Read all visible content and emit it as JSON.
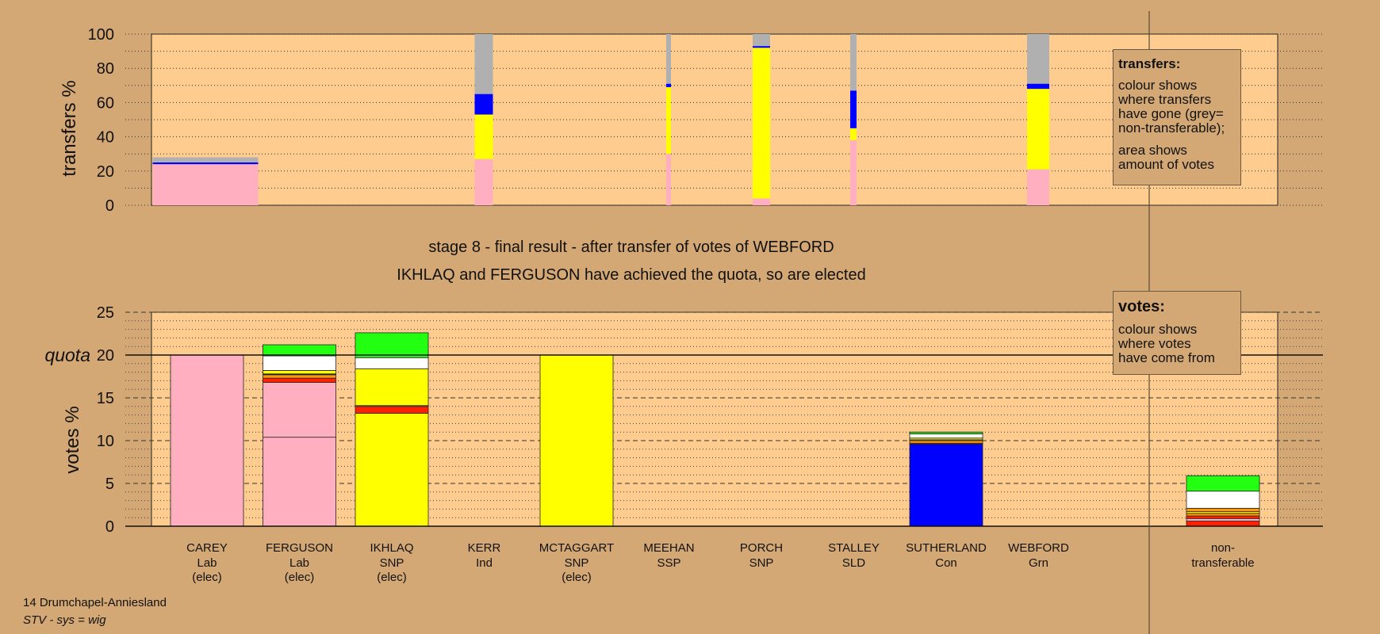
{
  "stage_line": "stage 8 - final result - after transfer of votes of WEBFORD",
  "result_line": "IKHLAQ and FERGUSON have achieved the quota, so are elected",
  "transfers_legend": {
    "title": "transfers:",
    "line1": "colour shows",
    "line2": "where transfers",
    "line3": "have gone (grey=",
    "line4": "non-transferable);",
    "line5": "area shows",
    "line6": "amount of votes"
  },
  "votes_legend": {
    "title": "votes:",
    "line1": "colour shows",
    "line2": "where votes",
    "line3": "have come from"
  },
  "footer": {
    "ward": "14 Drumchapel-Anniesland",
    "system": "STV - sys = wig"
  },
  "colors": {
    "background": "#d4a874",
    "plot_bg": "#ffcc8f",
    "Lab": "#ffafc0",
    "SNP": "#ffff00",
    "Con": "#0000ff",
    "Grn": "#22ff11",
    "Ind": "#ffffff",
    "SSP": "#ff2200",
    "SLD": "#ff9900",
    "nontransferable": "#b0b0b0"
  },
  "chart_data": [
    {
      "type": "bar",
      "stacked": true,
      "ylabel": "transfers %",
      "ylim": [
        0,
        100
      ],
      "yticks": [
        0,
        20,
        40,
        60,
        80,
        100
      ],
      "grid": true,
      "legend": "top-right",
      "columns": [
        {
          "name": "CAREY",
          "width_share": 25.0,
          "segments": [
            {
              "party": "Lab",
              "value": 24.0
            },
            {
              "party": "Con",
              "value": 1.0
            },
            {
              "party": "nontransferable",
              "value": 3.0
            }
          ]
        },
        {
          "name": "KERR",
          "width_share": 4.0,
          "segments": [
            {
              "party": "Lab",
              "value": 27.0
            },
            {
              "party": "SNP",
              "value": 26.0
            },
            {
              "party": "Con",
              "value": 12.0
            },
            {
              "party": "nontransferable",
              "value": 35.0
            }
          ]
        },
        {
          "name": "MEEHAN",
          "width_share": 1.0,
          "segments": [
            {
              "party": "Lab",
              "value": 30.0
            },
            {
              "party": "SNP",
              "value": 39.0
            },
            {
              "party": "Con",
              "value": 2.0
            },
            {
              "party": "nontransferable",
              "value": 29.0
            }
          ]
        },
        {
          "name": "PORCH",
          "width_share": 4.0,
          "segments": [
            {
              "party": "Lab",
              "value": 4.0
            },
            {
              "party": "SNP",
              "value": 88.0
            },
            {
              "party": "Con",
              "value": 1.0
            },
            {
              "party": "nontransferable",
              "value": 7.0
            }
          ]
        },
        {
          "name": "STALLEY",
          "width_share": 1.0,
          "segments": [
            {
              "party": "Lab",
              "value": 38.0
            },
            {
              "party": "SNP",
              "value": 7.0
            },
            {
              "party": "Con",
              "value": 22.0
            },
            {
              "party": "nontransferable",
              "value": 33.0
            }
          ]
        },
        {
          "name": "WEBFORD",
          "width_share": 5.0,
          "segments": [
            {
              "party": "Lab",
              "value": 21.0
            },
            {
              "party": "SNP",
              "value": 47.0
            },
            {
              "party": "Con",
              "value": 3.0
            },
            {
              "party": "nontransferable",
              "value": 29.0
            }
          ]
        }
      ]
    },
    {
      "type": "bar",
      "stacked": true,
      "ylabel": "votes %",
      "ylim": [
        0,
        25
      ],
      "yticks": [
        0,
        5,
        10,
        15,
        20,
        25
      ],
      "quota": 20,
      "quota_label": "quota",
      "grid": true,
      "legend": "top-right",
      "candidates": [
        {
          "name": "CAREY",
          "party": "Lab",
          "status": "(elec)",
          "segments": [
            {
              "party": "Lab",
              "value": 20.0
            }
          ]
        },
        {
          "name": "FERGUSON",
          "party": "Lab",
          "status": "(elec)",
          "segments": [
            {
              "party": "Lab",
              "value": 10.4
            },
            {
              "party": "Lab",
              "value": 6.4
            },
            {
              "party": "SSP",
              "value": 0.5
            },
            {
              "party": "SLD",
              "value": 0.4
            },
            {
              "party": "Con",
              "value": 0.1
            },
            {
              "party": "SNP",
              "value": 0.4
            },
            {
              "party": "Ind",
              "value": 1.7
            },
            {
              "party": "Grn",
              "value": 1.3
            }
          ]
        },
        {
          "name": "IKHLAQ",
          "party": "SNP",
          "status": "(elec)",
          "segments": [
            {
              "party": "SNP",
              "value": 13.2
            },
            {
              "party": "SSP",
              "value": 0.8
            },
            {
              "party": "Lab",
              "value": 0.1
            },
            {
              "party": "SNP",
              "value": 4.3
            },
            {
              "party": "Ind",
              "value": 1.3
            },
            {
              "party": "Grn",
              "value": 2.9
            }
          ]
        },
        {
          "name": "KERR",
          "party": "Ind",
          "status": "",
          "segments": []
        },
        {
          "name": "MCTAGGART",
          "party": "SNP",
          "status": "(elec)",
          "segments": [
            {
              "party": "SNP",
              "value": 20.0
            }
          ]
        },
        {
          "name": "MEEHAN",
          "party": "SSP",
          "status": "",
          "segments": []
        },
        {
          "name": "PORCH",
          "party": "SNP",
          "status": "",
          "segments": []
        },
        {
          "name": "STALLEY",
          "party": "SLD",
          "status": "",
          "segments": []
        },
        {
          "name": "SUTHERLAND",
          "party": "Con",
          "status": "",
          "segments": [
            {
              "party": "Con",
              "value": 9.6
            },
            {
              "party": "SSP",
              "value": 0.1
            },
            {
              "party": "SLD",
              "value": 0.3
            },
            {
              "party": "Lab",
              "value": 0.1
            },
            {
              "party": "SNP",
              "value": 0.2
            },
            {
              "party": "Ind",
              "value": 0.5
            },
            {
              "party": "Grn",
              "value": 0.2
            }
          ]
        },
        {
          "name": "WEBFORD",
          "party": "Grn",
          "status": "",
          "segments": []
        }
      ],
      "nontransferable": {
        "label1": "non-",
        "label2": "transferable",
        "segments": [
          {
            "party": "SSP",
            "value": 0.6
          },
          {
            "party": "Lab",
            "value": 0.3
          },
          {
            "party": "SSP",
            "value": 0.3
          },
          {
            "party": "SLD",
            "value": 0.3
          },
          {
            "party": "SNP",
            "value": 0.2
          },
          {
            "party": "SLD",
            "value": 0.4
          },
          {
            "party": "Ind",
            "value": 2.0
          },
          {
            "party": "Grn",
            "value": 1.8
          }
        ]
      }
    }
  ]
}
